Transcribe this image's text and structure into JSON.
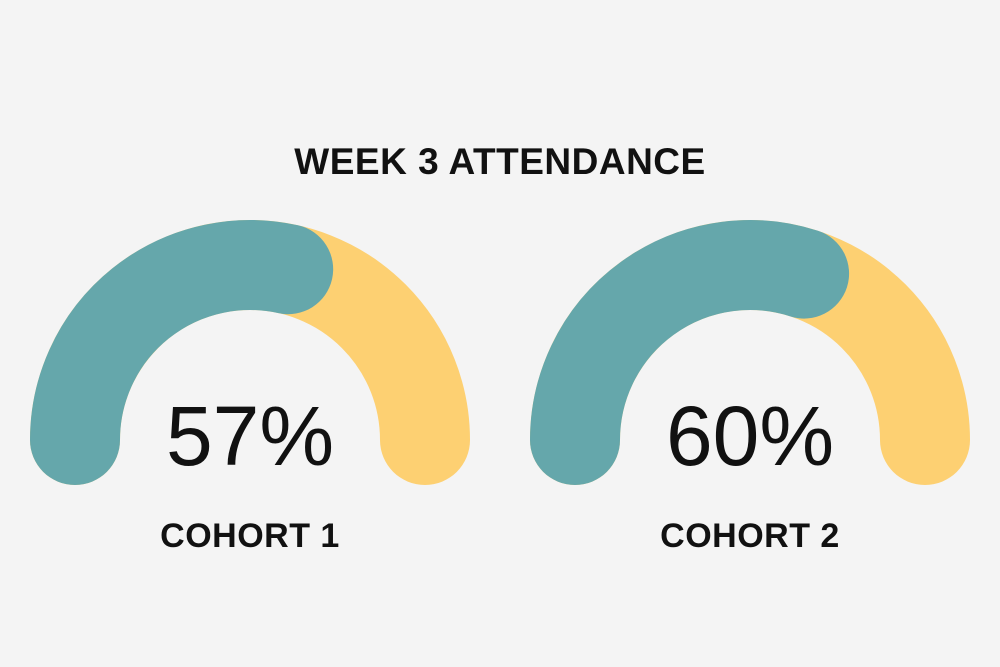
{
  "title": "WEEK 3 ATTENDANCE",
  "colors": {
    "filled": "#65a7ab",
    "remaining": "#fdd072",
    "background": "#f4f4f4",
    "text": "#111111"
  },
  "chart_data": {
    "type": "gauge",
    "title": "WEEK 3 ATTENDANCE",
    "range": [
      0,
      100
    ],
    "unit": "%",
    "gauges": [
      {
        "label": "COHORT 1",
        "value": 57,
        "display": "57%"
      },
      {
        "label": "COHORT 2",
        "value": 60,
        "display": "60%"
      }
    ]
  }
}
